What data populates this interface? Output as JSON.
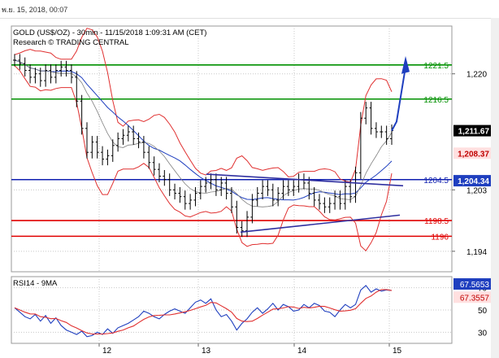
{
  "window": {
    "timestamp": "พ.ย. 15, 2018, 00:07"
  },
  "colors": {
    "price": "#000000",
    "ma": "#1f3fbf",
    "bands": "#e03030",
    "res_line": "#009000",
    "sup_line": "#e00000",
    "mid_line": "#1020b0",
    "trend": "#3030a0",
    "arrow": "#1f3fbf",
    "rsi": "#1f3fbf",
    "rsi_ma": "#e03030",
    "grid": "#c8c8c8"
  },
  "chart_data": [
    {
      "type": "line",
      "title": "GOLD (US$/OZ) - 30min - 11/15/2018 1:09:31 AM (CET)",
      "subtitle": "Research © TRADING CENTRAL",
      "x_ticks": [
        "12",
        "13",
        "14",
        "15"
      ],
      "y_ticks": [
        1194,
        1203,
        1220
      ],
      "ylim": [
        1191,
        1227
      ],
      "legend": "none",
      "grid": true,
      "close_series": [
        1222,
        1221.5,
        1220.5,
        1219.5,
        1220,
        1219,
        1220.5,
        1219.5,
        1220.5,
        1221,
        1220.5,
        1219.5,
        1216,
        1212,
        1208.5,
        1210,
        1208.5,
        1207.5,
        1208,
        1209.5,
        1210.5,
        1211,
        1211.5,
        1210.5,
        1210,
        1208.5,
        1207,
        1206,
        1205,
        1204.5,
        1203,
        1202.5,
        1202,
        1201,
        1201.5,
        1202.5,
        1203.5,
        1204,
        1204.5,
        1203,
        1204,
        1202.5,
        1200.5,
        1197.5,
        1197,
        1199,
        1201.5,
        1202.5,
        1203.5,
        1203,
        1201.5,
        1202.5,
        1203.5,
        1203,
        1203.5,
        1204.5,
        1204,
        1202.5,
        1201.5,
        1201,
        1200.5,
        1201,
        1202,
        1201,
        1203.5,
        1202,
        1205.5,
        1213.5,
        1215,
        1212,
        1211.5,
        1211.5,
        1210.5,
        1211.67
      ],
      "current_price": "1,211.67",
      "value_tags": [
        "1,208.37",
        "1,204.34"
      ],
      "levels": [
        {
          "label": "1221.5",
          "value": 1221.3,
          "kind": "resistance"
        },
        {
          "label": "1216.5",
          "value": 1216.3,
          "kind": "resistance"
        },
        {
          "label": "1204.5",
          "value": 1204.5,
          "kind": "pivot"
        },
        {
          "label": "1198.5",
          "value": 1198.5,
          "kind": "support"
        },
        {
          "label": "1196",
          "value": 1196.2,
          "kind": "support"
        }
      ]
    },
    {
      "type": "line",
      "title": "RSI14 - 9MA",
      "x_ticks": [
        "12",
        "13",
        "14",
        "15"
      ],
      "y_ticks": [
        30,
        50,
        70
      ],
      "ylim": [
        20,
        80
      ],
      "legend": "none",
      "current_values": [
        "67.5653",
        "67.3557"
      ],
      "series": [
        {
          "values": [
            52,
            48,
            44,
            42,
            46,
            40,
            45,
            38,
            43,
            36,
            32,
            30,
            28,
            31,
            26,
            27,
            30,
            28,
            33,
            29,
            34,
            36,
            38,
            41,
            44,
            49,
            47,
            44,
            42,
            46,
            49,
            51,
            49,
            47,
            52,
            57,
            59,
            56,
            60,
            50,
            44,
            46,
            40,
            32,
            38,
            42,
            48,
            52,
            47,
            51,
            56,
            50,
            55,
            53,
            49,
            50,
            55,
            52,
            56,
            54,
            49,
            48,
            44,
            50,
            55,
            52,
            55,
            68,
            72,
            66,
            69,
            67,
            68,
            67.57
          ]
        }
      ]
    }
  ]
}
